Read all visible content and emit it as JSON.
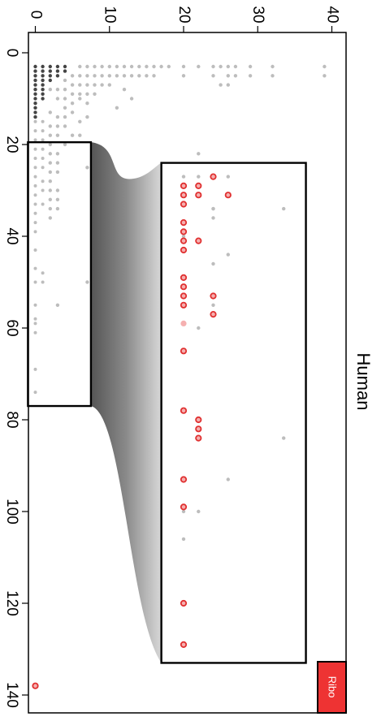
{
  "chart_data": {
    "type": "scatter",
    "orientation": "rotated-90-clockwise",
    "title": "",
    "xlabel": "",
    "ylabel": "Human",
    "xlim": [
      -1,
      42
    ],
    "ylim": [
      -5,
      143
    ],
    "x_ticks": [
      "0",
      "10",
      "20",
      "30",
      "40"
    ],
    "y_ticks": [
      "0",
      "20",
      "40",
      "60",
      "80",
      "100",
      "120",
      "140"
    ],
    "grid": false,
    "ribo_label": "Ribo",
    "colors": {
      "points": "#bdbdbd",
      "dense_points": "#444444",
      "highlight_edge": "#e03030",
      "highlight_fill": "#f5b0b0",
      "ribo_box": "#ee3333",
      "frame": "#000000"
    },
    "overview_box": {
      "x": [
        -1,
        7.5
      ],
      "y": [
        19.5,
        77
      ]
    },
    "zoom_box": {
      "x": [
        17,
        36.5
      ],
      "y": [
        24,
        133
      ]
    },
    "series": [
      {
        "points": [
          [
            2,
            8
          ],
          [
            2,
            13
          ],
          [
            2,
            16
          ],
          [
            2,
            18
          ],
          [
            2,
            20
          ],
          [
            2,
            22
          ],
          [
            2,
            24
          ],
          [
            2,
            26
          ],
          [
            2,
            28
          ],
          [
            2,
            30
          ],
          [
            2,
            32
          ],
          [
            2,
            34
          ],
          [
            2,
            36
          ],
          [
            3,
            8
          ],
          [
            3,
            10
          ],
          [
            3,
            14
          ],
          [
            3,
            16
          ],
          [
            3,
            18
          ],
          [
            3,
            22
          ],
          [
            3,
            24
          ],
          [
            3,
            26
          ],
          [
            3,
            30
          ],
          [
            3,
            32
          ],
          [
            3,
            34
          ],
          [
            3,
            55
          ],
          [
            4,
            6
          ],
          [
            4,
            8
          ],
          [
            4,
            10
          ],
          [
            4,
            12
          ],
          [
            4,
            14
          ],
          [
            4,
            16
          ],
          [
            4,
            20
          ],
          [
            5,
            5
          ],
          [
            5,
            7
          ],
          [
            5,
            9
          ],
          [
            5,
            11
          ],
          [
            5,
            13
          ],
          [
            5,
            18
          ],
          [
            6,
            3
          ],
          [
            6,
            5
          ],
          [
            6,
            7
          ],
          [
            6,
            9
          ],
          [
            6,
            10
          ],
          [
            6,
            15
          ],
          [
            6,
            18
          ],
          [
            7,
            3
          ],
          [
            7,
            5
          ],
          [
            7,
            7
          ],
          [
            7,
            9
          ],
          [
            7,
            11
          ],
          [
            7,
            14
          ],
          [
            7,
            25
          ],
          [
            7,
            50
          ],
          [
            8,
            3
          ],
          [
            8,
            5
          ],
          [
            8,
            7
          ],
          [
            8,
            9
          ],
          [
            9,
            3
          ],
          [
            9,
            5
          ],
          [
            9,
            7
          ],
          [
            10,
            3
          ],
          [
            10,
            5
          ],
          [
            10,
            7
          ],
          [
            11,
            3
          ],
          [
            11,
            5
          ],
          [
            11,
            12
          ],
          [
            12,
            3
          ],
          [
            12,
            5
          ],
          [
            12,
            8
          ],
          [
            13,
            3
          ],
          [
            13,
            5
          ],
          [
            13,
            10
          ],
          [
            14,
            3
          ],
          [
            14,
            5
          ],
          [
            15,
            3
          ],
          [
            15,
            5
          ],
          [
            16,
            3
          ],
          [
            16,
            5
          ],
          [
            17,
            3
          ],
          [
            18,
            3
          ],
          [
            20,
            3
          ],
          [
            20,
            5
          ],
          [
            20,
            40
          ],
          [
            20,
            53
          ],
          [
            22,
            3
          ],
          [
            22,
            22
          ],
          [
            22,
            60
          ],
          [
            22,
            100
          ],
          [
            24,
            3
          ],
          [
            24,
            5
          ],
          [
            24,
            34
          ],
          [
            25,
            3
          ],
          [
            25,
            7
          ],
          [
            26,
            3
          ],
          [
            26,
            5
          ],
          [
            26,
            7
          ],
          [
            27,
            3
          ],
          [
            27,
            5
          ],
          [
            29,
            3
          ],
          [
            29,
            5
          ],
          [
            32,
            3
          ],
          [
            32,
            5
          ],
          [
            39,
            3
          ],
          [
            39,
            5
          ],
          [
            20,
            27
          ],
          [
            22,
            27
          ],
          [
            26,
            27
          ],
          [
            22,
            29
          ],
          [
            22,
            31
          ],
          [
            24,
            34
          ],
          [
            24,
            36
          ],
          [
            26,
            44
          ],
          [
            24,
            46
          ],
          [
            24,
            55
          ],
          [
            33.5,
            34
          ],
          [
            33.5,
            84
          ],
          [
            26,
            93
          ],
          [
            20,
            100
          ],
          [
            20,
            106
          ]
        ]
      },
      {
        "points": [
          [
            0,
            3
          ],
          [
            0,
            4
          ],
          [
            0,
            5
          ],
          [
            0,
            6
          ],
          [
            0,
            7
          ],
          [
            0,
            8
          ],
          [
            0,
            9
          ],
          [
            0,
            10
          ],
          [
            0,
            11
          ],
          [
            0,
            12
          ],
          [
            0,
            13
          ],
          [
            0,
            14
          ],
          [
            1,
            3
          ],
          [
            1,
            4
          ],
          [
            1,
            5
          ],
          [
            1,
            6
          ],
          [
            1,
            7
          ],
          [
            1,
            8
          ],
          [
            1,
            9
          ],
          [
            1,
            10
          ],
          [
            2,
            3
          ],
          [
            2,
            4
          ],
          [
            2,
            5
          ],
          [
            2,
            6
          ],
          [
            3,
            3
          ],
          [
            3,
            4
          ],
          [
            3,
            5
          ],
          [
            4,
            3
          ],
          [
            4,
            4
          ]
        ]
      },
      {
        "points": [
          [
            0,
            15
          ],
          [
            0,
            17
          ],
          [
            0,
            19
          ],
          [
            0,
            21
          ],
          [
            0,
            23
          ],
          [
            0,
            25
          ],
          [
            0,
            27
          ],
          [
            0,
            29
          ],
          [
            0,
            31
          ],
          [
            0,
            33
          ],
          [
            0,
            35
          ],
          [
            0,
            37
          ],
          [
            0,
            39
          ],
          [
            0,
            43
          ],
          [
            0,
            47
          ],
          [
            0,
            50
          ],
          [
            0,
            55
          ],
          [
            0,
            58
          ],
          [
            0,
            59
          ],
          [
            0,
            61
          ],
          [
            0,
            69
          ],
          [
            0,
            74
          ],
          [
            1,
            15
          ],
          [
            1,
            17
          ],
          [
            1,
            19
          ],
          [
            1,
            21
          ],
          [
            1,
            23
          ],
          [
            1,
            25
          ],
          [
            1,
            28
          ],
          [
            1,
            30
          ],
          [
            1,
            33
          ],
          [
            1,
            48
          ],
          [
            1,
            50
          ]
        ]
      },
      {
        "points": [
          [
            20,
            29
          ],
          [
            22,
            29
          ],
          [
            24,
            27
          ],
          [
            20,
            31
          ],
          [
            22,
            31
          ],
          [
            26,
            31
          ],
          [
            20,
            33
          ],
          [
            20,
            37
          ],
          [
            20,
            39
          ],
          [
            20,
            41
          ],
          [
            22,
            41
          ],
          [
            20,
            43
          ],
          [
            20,
            49
          ],
          [
            20,
            51
          ],
          [
            20,
            53
          ],
          [
            24,
            53
          ],
          [
            20,
            55
          ],
          [
            24,
            57
          ],
          [
            20,
            65
          ],
          [
            20,
            78
          ],
          [
            22,
            80
          ],
          [
            22,
            82
          ],
          [
            22,
            84
          ],
          [
            20,
            93
          ],
          [
            20,
            99
          ],
          [
            20,
            120
          ],
          [
            20,
            129
          ],
          [
            0,
            138
          ]
        ]
      },
      {
        "points": [
          [
            20,
            59
          ]
        ]
      }
    ]
  }
}
